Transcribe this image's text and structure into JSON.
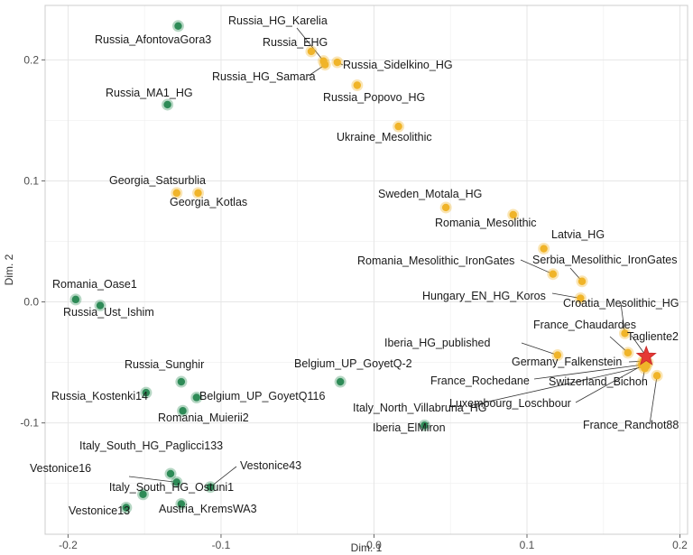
{
  "chart_data": {
    "type": "scatter",
    "title": "",
    "xlabel": "Dim. 1",
    "ylabel": "Dim. 2",
    "xlim": [
      -0.215,
      0.205
    ],
    "ylim": [
      -0.192,
      0.245
    ],
    "x_ticks": [
      -0.2,
      -0.1,
      0.0,
      0.1,
      0.2
    ],
    "y_ticks": [
      -0.1,
      0.0,
      0.1,
      0.2
    ],
    "x_tick_labels": [
      "-0.2",
      "-0.1",
      "0.0",
      "0.1",
      "0.2"
    ],
    "y_tick_labels": [
      "-0.1",
      "0.0",
      "0.1",
      "0.2"
    ],
    "grid": true,
    "legend": "none",
    "colors": {
      "green": "#2e8b57",
      "orange": "#f0b429",
      "star": "#e53935"
    },
    "series": [
      {
        "name": "green",
        "points": [
          {
            "label": "Russia_AfontovaGora3",
            "x": -0.128,
            "y": 0.228
          },
          {
            "label": "Russia_MA1_HG",
            "x": -0.135,
            "y": 0.163
          },
          {
            "label": "Romania_Oase1",
            "x": -0.195,
            "y": 0.002
          },
          {
            "label": "Russia_Ust_Ishim",
            "x": -0.179,
            "y": -0.003
          },
          {
            "label": "Russia_Sunghir",
            "x": -0.126,
            "y": -0.066
          },
          {
            "label": "Russia_Kostenki14",
            "x": -0.149,
            "y": -0.075
          },
          {
            "label": "Belgium_UP_GoyetQ116",
            "x": -0.116,
            "y": -0.079
          },
          {
            "label": "Romania_Muierii2",
            "x": -0.125,
            "y": -0.09
          },
          {
            "label": "Belgium_UP_GoyetQ-2",
            "x": -0.022,
            "y": -0.066
          },
          {
            "label": "Iberia_ElMiron",
            "x": 0.033,
            "y": -0.102
          },
          {
            "label": "Italy_South_HG_Paglicci133",
            "x": -0.133,
            "y": -0.142
          },
          {
            "label": "Italy_South_HG_Ostuni1",
            "x": -0.129,
            "y": -0.149
          },
          {
            "label": "Vestonice16",
            "x": -0.151,
            "y": -0.159
          },
          {
            "label": "Vestonice43",
            "x": -0.107,
            "y": -0.153
          },
          {
            "label": "Austria_KremsWA3",
            "x": -0.126,
            "y": -0.167
          },
          {
            "label": "Vestonice13",
            "x": -0.162,
            "y": -0.17
          }
        ]
      },
      {
        "name": "orange",
        "points": [
          {
            "label": "Russia_HG_Karelia",
            "x": -0.033,
            "y": 0.199
          },
          {
            "label": "Russia_EHG",
            "x": -0.041,
            "y": 0.207
          },
          {
            "label": "Russia_Sidelkino_HG",
            "x": -0.024,
            "y": 0.198
          },
          {
            "label": "Russia_HG_Samara",
            "x": -0.032,
            "y": 0.196
          },
          {
            "label": "Russia_Popovo_HG",
            "x": -0.011,
            "y": 0.179
          },
          {
            "label": "Ukraine_Mesolithic",
            "x": 0.016,
            "y": 0.145
          },
          {
            "label": "Georgia_Satsurblia",
            "x": -0.129,
            "y": 0.09
          },
          {
            "label": "Georgia_Kotlas",
            "x": -0.115,
            "y": 0.09
          },
          {
            "label": "Sweden_Motala_HG",
            "x": 0.047,
            "y": 0.078
          },
          {
            "label": "Romania_Mesolithic",
            "x": 0.091,
            "y": 0.072
          },
          {
            "label": "Latvia_HG",
            "x": 0.111,
            "y": 0.044
          },
          {
            "label": "Romania_Mesolithic_IronGates",
            "x": 0.117,
            "y": 0.023
          },
          {
            "label": "Serbia_Mesolithic_IronGates",
            "x": 0.136,
            "y": 0.017
          },
          {
            "label": "Hungary_EN_HG_Koros",
            "x": 0.135,
            "y": 0.003
          },
          {
            "label": "Croatia_Mesolithic_HG",
            "x": 0.164,
            "y": -0.026
          },
          {
            "label": "France_Chaudardes",
            "x": 0.166,
            "y": -0.042
          },
          {
            "label": "Iberia_HG_published",
            "x": 0.12,
            "y": -0.044
          },
          {
            "label": "Germany_Falkenstein",
            "x": 0.176,
            "y": -0.049
          },
          {
            "label": "France_Rochedane",
            "x": 0.175,
            "y": -0.052
          },
          {
            "label": "Switzerland_Bichon",
            "x": 0.177,
            "y": -0.055
          },
          {
            "label": "Luxembourg_Loschbour",
            "x": 0.179,
            "y": -0.05
          },
          {
            "label": "Italy_North_Villabruna_HG",
            "x": 0.178,
            "y": -0.053
          },
          {
            "label": "France_Ranchot88",
            "x": 0.185,
            "y": -0.061
          }
        ]
      },
      {
        "name": "star",
        "points": [
          {
            "label": "Tagliente2",
            "x": 0.178,
            "y": -0.045
          }
        ]
      }
    ]
  }
}
